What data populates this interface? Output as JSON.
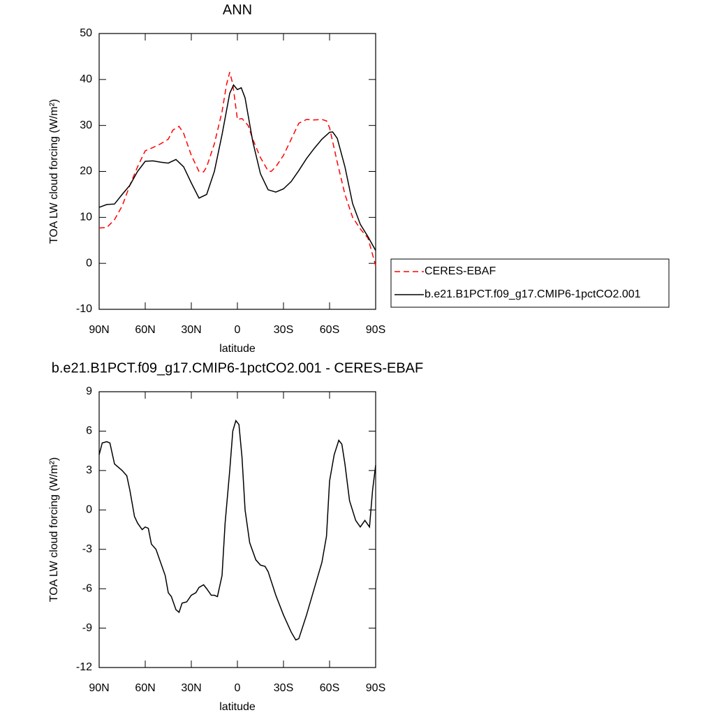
{
  "chart_data": [
    {
      "type": "line",
      "title": "ANN",
      "xlabel": "latitude",
      "ylabel": "TOA LW cloud forcing (W/m²)",
      "xlim": [
        90,
        -90
      ],
      "xticks": [
        {
          "value": 90,
          "label": "90N"
        },
        {
          "value": 60,
          "label": "60N"
        },
        {
          "value": 30,
          "label": "30N"
        },
        0,
        {
          "value": -30,
          "label": "30S"
        },
        {
          "value": -60,
          "label": "60S"
        },
        {
          "value": -90,
          "label": "90S"
        }
      ],
      "ylim": [
        -10,
        50
      ],
      "yticks": [
        -10,
        0,
        10,
        20,
        30,
        40,
        50
      ],
      "legend": "right",
      "series": [
        {
          "name": "CERES-EBAF",
          "color": "#ff0000",
          "line_style": "dashed",
          "x": [
            90,
            85,
            80,
            75,
            70,
            65,
            60,
            55,
            50,
            45,
            42,
            38,
            35,
            30,
            25,
            22,
            20,
            15,
            10,
            7,
            5,
            3,
            0,
            -3,
            -7,
            -10,
            -15,
            -20,
            -22,
            -25,
            -30,
            -35,
            -40,
            -45,
            -50,
            -55,
            -58,
            -60,
            -63,
            -65,
            -70,
            -75,
            -80,
            -85,
            -90
          ],
          "values": [
            7.7,
            7.8,
            9.5,
            12.5,
            17,
            21,
            24.5,
            25.2,
            26,
            27,
            29,
            29.8,
            28.3,
            23.5,
            20,
            19.9,
            21,
            26,
            33,
            39,
            41.6,
            39,
            31.3,
            31.5,
            30,
            27,
            23,
            20.1,
            20,
            21,
            23.5,
            27,
            30.5,
            31.3,
            31.2,
            31.3,
            31,
            29.5,
            25,
            22,
            15,
            10,
            7.5,
            5.5,
            -0.5
          ]
        },
        {
          "name": "b.e21.B1PCT.f09_g17.CMIP6-1pctCO2.001",
          "color": "#000000",
          "line_style": "solid",
          "x": [
            90,
            85,
            80,
            75,
            70,
            65,
            60,
            55,
            50,
            45,
            40,
            35,
            30,
            25,
            20,
            15,
            10,
            5,
            2.5,
            0,
            -2.5,
            -5,
            -10,
            -15,
            -20,
            -25,
            -30,
            -35,
            -40,
            -45,
            -50,
            -55,
            -60,
            -62,
            -65,
            -70,
            -75,
            -80,
            -85,
            -90
          ],
          "values": [
            12.2,
            12.8,
            12.9,
            15,
            17,
            20,
            22.2,
            22.3,
            22,
            21.8,
            22.6,
            21,
            17.5,
            14.2,
            15,
            20,
            28,
            37,
            38.8,
            37.8,
            38.2,
            36,
            26.5,
            19.5,
            16,
            15.5,
            16.2,
            17.8,
            20.2,
            22.8,
            25,
            27,
            28.5,
            28.6,
            27.2,
            21,
            13,
            8.5,
            5.8,
            2.8
          ]
        }
      ]
    },
    {
      "type": "line",
      "title": "b.e21.B1PCT.f09_g17.CMIP6-1pctCO2.001 - CERES-EBAF",
      "xlabel": "latitude",
      "ylabel": "TOA LW cloud forcing (W/m²)",
      "xlim": [
        90,
        -90
      ],
      "xticks": [
        {
          "value": 90,
          "label": "90N"
        },
        {
          "value": 60,
          "label": "60N"
        },
        {
          "value": 30,
          "label": "30N"
        },
        0,
        {
          "value": -30,
          "label": "30S"
        },
        {
          "value": -60,
          "label": "60S"
        },
        {
          "value": -90,
          "label": "90S"
        }
      ],
      "ylim": [
        -12,
        9
      ],
      "yticks": [
        -12,
        -9,
        -6,
        -3,
        0,
        3,
        6,
        9
      ],
      "series": [
        {
          "color": "#000000",
          "line_style": "solid",
          "x": [
            90,
            88,
            85,
            83,
            80,
            75,
            72,
            70,
            67,
            65,
            62,
            60,
            58,
            56,
            53,
            50,
            47,
            45,
            43,
            40,
            38,
            36,
            33,
            30,
            27,
            25,
            22,
            20,
            17,
            15,
            13,
            10,
            8,
            5,
            3,
            1,
            -1,
            -3,
            -5,
            -8,
            -12,
            -15,
            -18,
            -20,
            -25,
            -30,
            -35,
            -38,
            -40,
            -45,
            -50,
            -55,
            -58,
            -60,
            -63,
            -66,
            -68,
            -70,
            -73,
            -77,
            -80,
            -83,
            -86,
            -88,
            -90
          ],
          "values": [
            4.2,
            5.1,
            5.2,
            5.1,
            3.5,
            3,
            2.6,
            1.5,
            -0.5,
            -1,
            -1.5,
            -1.3,
            -1.4,
            -2.6,
            -3,
            -4,
            -5,
            -6.3,
            -6.6,
            -7.6,
            -7.8,
            -7.1,
            -7,
            -6.5,
            -6.3,
            -5.9,
            -5.7,
            -6,
            -6.5,
            -6.5,
            -6.6,
            -5,
            -1,
            3,
            6,
            6.8,
            6.5,
            4,
            0,
            -2.5,
            -3.8,
            -4.2,
            -4.3,
            -4.7,
            -6.5,
            -8,
            -9.3,
            -9.9,
            -9.8,
            -8,
            -6,
            -4,
            -2,
            2.2,
            4.2,
            5.3,
            5,
            3.5,
            0.7,
            -0.8,
            -1.3,
            -0.8,
            -1.3,
            1.5,
            3.4
          ]
        }
      ]
    }
  ]
}
